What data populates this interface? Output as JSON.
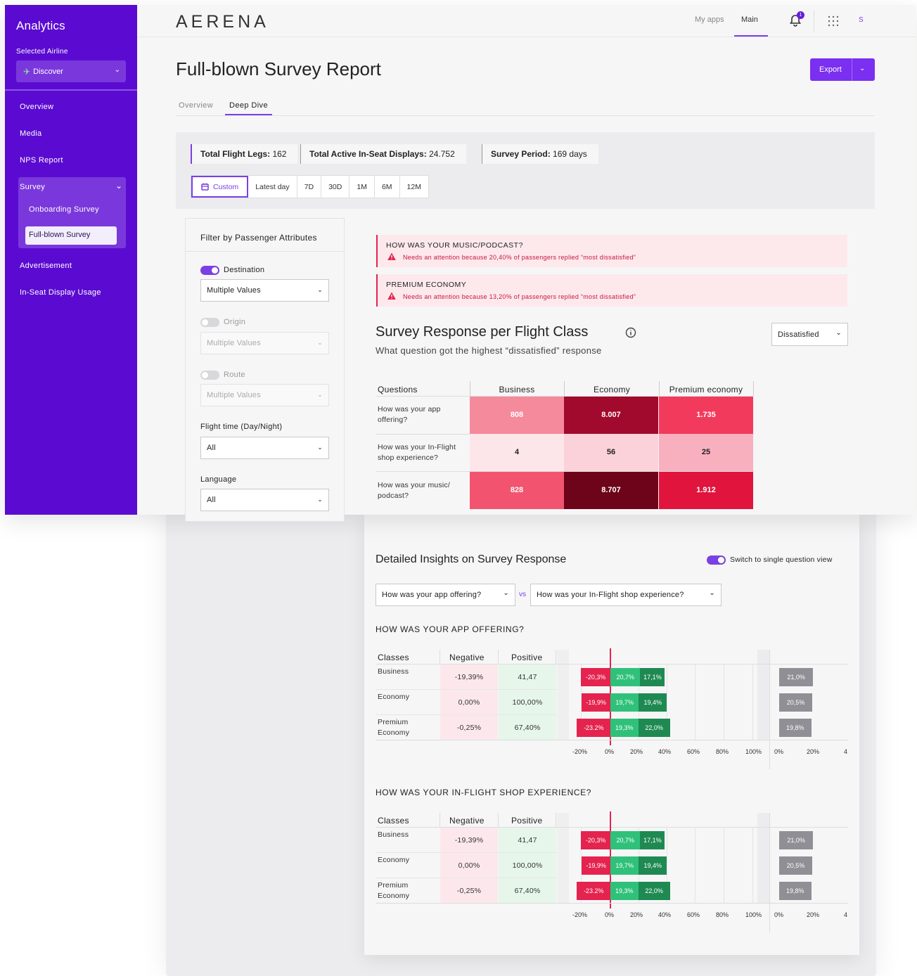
{
  "sidebar": {
    "title": "Analytics",
    "airline_label": "Selected Airline",
    "airline_value": "Discover",
    "items": [
      "Overview",
      "Media",
      "NPS Report",
      "Survey",
      "Advertisement",
      "In-Seat Display Usage"
    ],
    "survey_sub": [
      "Onboarding Survey",
      "Full-blown Survey"
    ]
  },
  "topbar": {
    "logo": "AERENA",
    "nav_myapps": "My apps",
    "nav_main": "Main",
    "notif_count": "1",
    "avatar": "S"
  },
  "page": {
    "title": "Full-blown Survey Report",
    "export": "Export",
    "tabs": [
      "Overview",
      "Deep Dive"
    ]
  },
  "stats": {
    "legs_label": "Total Flight Legs:",
    "legs_value": "162",
    "displays_label": "Total Active In-Seat Displays:",
    "displays_value": "24.752",
    "period_label": "Survey Period:",
    "period_value": "169 days"
  },
  "ranges": [
    "Custom",
    "Latest day",
    "7D",
    "30D",
    "1M",
    "6M",
    "12M"
  ],
  "filter": {
    "title": "Filter by Passenger Attributes",
    "destination": "Destination",
    "destination_value": "Multiple Values",
    "origin": "Origin",
    "origin_value": "Multiple Values",
    "route": "Route",
    "route_value": "Multiple Values",
    "flight_time": "Flight time (Day/Night)",
    "flight_time_value": "All",
    "language": "Language",
    "language_value": "All"
  },
  "alerts": [
    {
      "title": "HOW WAS YOUR MUSIC/PODCAST?",
      "msg": "Needs an attention because 20,40% of passengers replied “most dissatisfied”"
    },
    {
      "title": "PREMIUM ECONOMY",
      "msg": "Needs an attention because 13,20% of passengers replied “most dissatisfied”"
    }
  ],
  "heatmap": {
    "title": "Survey Response per Flight Class",
    "subtitle": "What question got the highest “dissatisfied” response",
    "dropdown": "Dissatisfied",
    "col_q": "Questions",
    "cols": [
      "Business",
      "Economy",
      "Premium economy"
    ],
    "rows": [
      {
        "q": "How was your app offering?",
        "vals": [
          "808",
          "8.007",
          "1.735"
        ],
        "colors": [
          "#f48a9c",
          "#a10a2d",
          "#f23a5c"
        ]
      },
      {
        "q": "How was your In-Flight shop experience?",
        "vals": [
          "4",
          "56",
          "25"
        ],
        "colors": [
          "#fde6ea",
          "#fbd2da",
          "#f8b0bf"
        ]
      },
      {
        "q": "How was your music/ podcast?",
        "vals": [
          "828",
          "8.707",
          "1.912"
        ],
        "colors": [
          "#f2546f",
          "#6d0419",
          "#e0143d"
        ]
      }
    ]
  },
  "insights": {
    "title": "Detailed Insights on Survey Response",
    "toggle_label": "Switch to single question view",
    "q1": "How was your app offering?",
    "vs": "vs",
    "q2": "How was your In-Flight shop experience?",
    "col_classes": "Classes",
    "col_neg": "Negative",
    "col_pos": "Positive",
    "axis": [
      "-20%",
      "0%",
      "20%",
      "40%",
      "60%",
      "80%",
      "100%"
    ],
    "axis2": [
      "0%",
      "20%",
      "4"
    ],
    "sections": [
      {
        "heading": "HOW WAS YOUR APP OFFERING?",
        "rows": [
          {
            "cls": "Business",
            "neg": "-19,39%",
            "pos": "41,47",
            "b1": "-20,3%",
            "b2": "20,7%",
            "b3": "17,1%",
            "g": "21,0%"
          },
          {
            "cls": "Economy",
            "neg": "0,00%",
            "pos": "100,00%",
            "b1": "-19,9%",
            "b2": "19,7%",
            "b3": "19,4%",
            "g": "20,5%"
          },
          {
            "cls": "Premium Economy",
            "neg": "-0,25%",
            "pos": "67,40%",
            "b1": "-23.2%",
            "b2": "19,3%",
            "b3": "22,0%",
            "g": "19,8%"
          }
        ]
      },
      {
        "heading": "HOW WAS YOUR IN-FLIGHT SHOP EXPERIENCE?",
        "rows": [
          {
            "cls": "Business",
            "neg": "-19,39%",
            "pos": "41,47",
            "b1": "-20,3%",
            "b2": "20,7%",
            "b3": "17,1%",
            "g": "21,0%"
          },
          {
            "cls": "Economy",
            "neg": "0,00%",
            "pos": "100,00%",
            "b1": "-19,9%",
            "b2": "19,7%",
            "b3": "19,4%",
            "g": "20,5%"
          },
          {
            "cls": "Premium Economy",
            "neg": "-0,25%",
            "pos": "67,40%",
            "b1": "-23.2%",
            "b2": "19,3%",
            "b3": "22,0%",
            "g": "19,8%"
          }
        ]
      }
    ]
  }
}
